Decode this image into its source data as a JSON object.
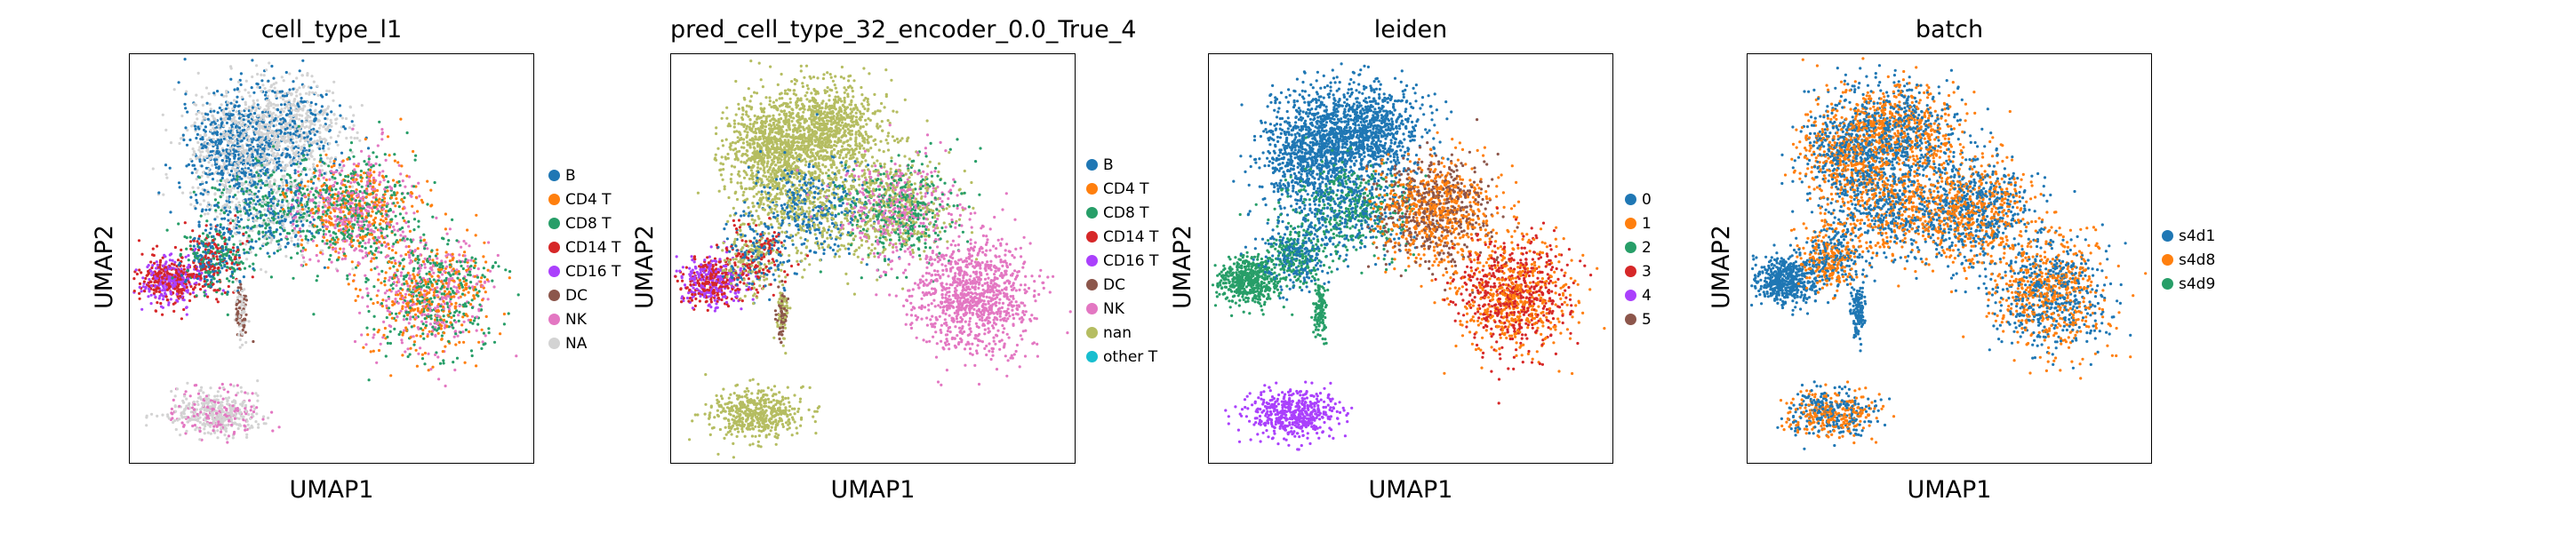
{
  "chart_data": [
    {
      "type": "scatter",
      "title": "cell_type_l1",
      "xlabel": "UMAP1",
      "ylabel": "UMAP2",
      "legend_placement": "right",
      "grid": false,
      "legend": [
        {
          "label": "B",
          "color": "#1f77b4"
        },
        {
          "label": "CD4 T",
          "color": "#ff7f0e"
        },
        {
          "label": "CD8 T",
          "color": "#279e68"
        },
        {
          "label": "CD14 T",
          "color": "#d62728"
        },
        {
          "label": "CD16 T",
          "color": "#aa40fc"
        },
        {
          "label": "DC",
          "color": "#8c564b"
        },
        {
          "label": "NK",
          "color": "#e377c2"
        },
        {
          "label": "NA",
          "color": "#d3d3d3"
        }
      ]
    },
    {
      "type": "scatter",
      "title": "pred_cell_type_32_encoder_0.0_True_4",
      "xlabel": "UMAP1",
      "ylabel": "UMAP2",
      "legend_placement": "right",
      "grid": false,
      "legend": [
        {
          "label": "B",
          "color": "#1f77b4"
        },
        {
          "label": "CD4 T",
          "color": "#ff7f0e"
        },
        {
          "label": "CD8 T",
          "color": "#279e68"
        },
        {
          "label": "CD14 T",
          "color": "#d62728"
        },
        {
          "label": "CD16 T",
          "color": "#aa40fc"
        },
        {
          "label": "DC",
          "color": "#8c564b"
        },
        {
          "label": "NK",
          "color": "#e377c2"
        },
        {
          "label": "nan",
          "color": "#b5bd61"
        },
        {
          "label": "other T",
          "color": "#17becf"
        }
      ]
    },
    {
      "type": "scatter",
      "title": "leiden",
      "xlabel": "UMAP1",
      "ylabel": "UMAP2",
      "legend_placement": "right",
      "grid": false,
      "legend": [
        {
          "label": "0",
          "color": "#1f77b4"
        },
        {
          "label": "1",
          "color": "#ff7f0e"
        },
        {
          "label": "2",
          "color": "#279e68"
        },
        {
          "label": "3",
          "color": "#d62728"
        },
        {
          "label": "4",
          "color": "#aa40fc"
        },
        {
          "label": "5",
          "color": "#8c564b"
        }
      ]
    },
    {
      "type": "scatter",
      "title": "batch",
      "xlabel": "UMAP1",
      "ylabel": "UMAP2",
      "legend_placement": "right",
      "grid": false,
      "legend": [
        {
          "label": "s4d1",
          "color": "#1f77b4"
        },
        {
          "label": "s4d8",
          "color": "#ff7f0e"
        },
        {
          "label": "s4d9",
          "color": "#279e68"
        }
      ]
    }
  ]
}
